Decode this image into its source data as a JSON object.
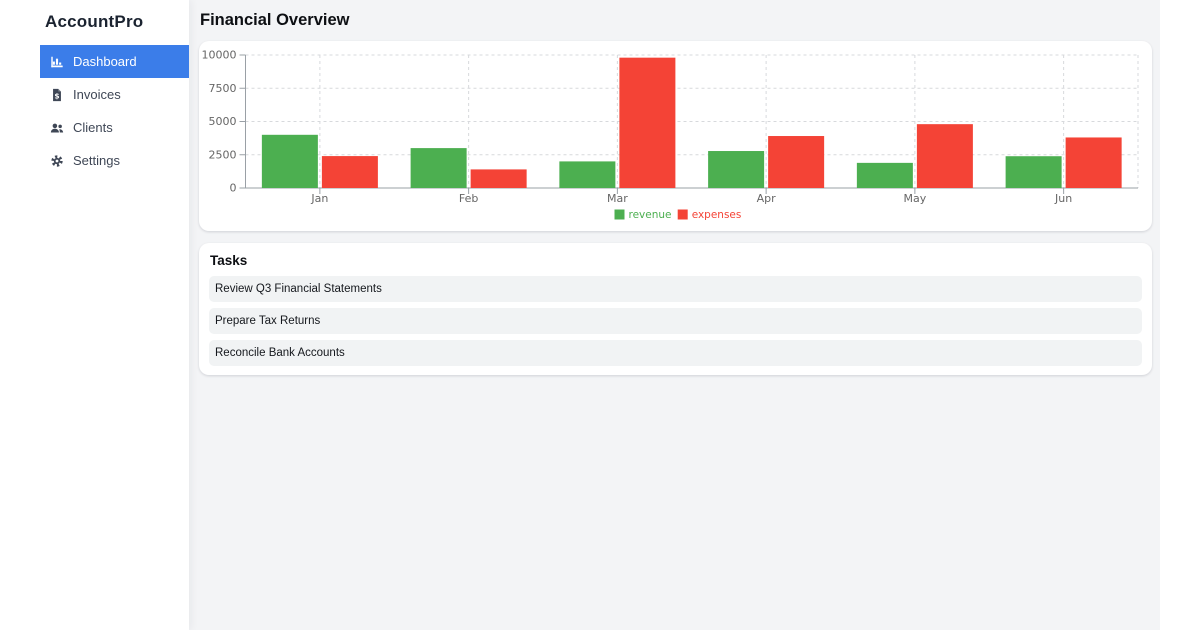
{
  "app": {
    "name": "AccountPro"
  },
  "colors": {
    "accent": "#3b7de9",
    "main_background": "#f3f4f6",
    "revenue_green": "#4caf50",
    "expenses_red": "#f44336"
  },
  "sidebar": {
    "items": [
      {
        "label": "Dashboard",
        "icon": "chart-bar-icon",
        "active": true
      },
      {
        "label": "Invoices",
        "icon": "invoice-dollar-icon",
        "active": false
      },
      {
        "label": "Clients",
        "icon": "users-icon",
        "active": false
      },
      {
        "label": "Settings",
        "icon": "gear-icon",
        "active": false
      }
    ]
  },
  "main": {
    "title": "Financial Overview",
    "tasks": {
      "title": "Tasks",
      "items": [
        "Review Q3 Financial Statements",
        "Prepare Tax Returns",
        "Reconcile Bank Accounts"
      ]
    }
  },
  "chart_data": {
    "type": "bar",
    "categories": [
      "Jan",
      "Feb",
      "Mar",
      "Apr",
      "May",
      "Jun"
    ],
    "series": [
      {
        "name": "revenue",
        "color": "#4caf50",
        "values": [
          4000,
          3000,
          2000,
          2780,
          1890,
          2390
        ]
      },
      {
        "name": "expenses",
        "color": "#f44336",
        "values": [
          2400,
          1398,
          9800,
          3908,
          4800,
          3800
        ]
      }
    ],
    "title": "",
    "xlabel": "",
    "ylabel": "",
    "ylim": [
      0,
      10000
    ],
    "yticks": [
      0,
      2500,
      5000,
      7500,
      10000
    ],
    "grid": true,
    "grid_style": "dashed",
    "legend_position": "bottom"
  }
}
